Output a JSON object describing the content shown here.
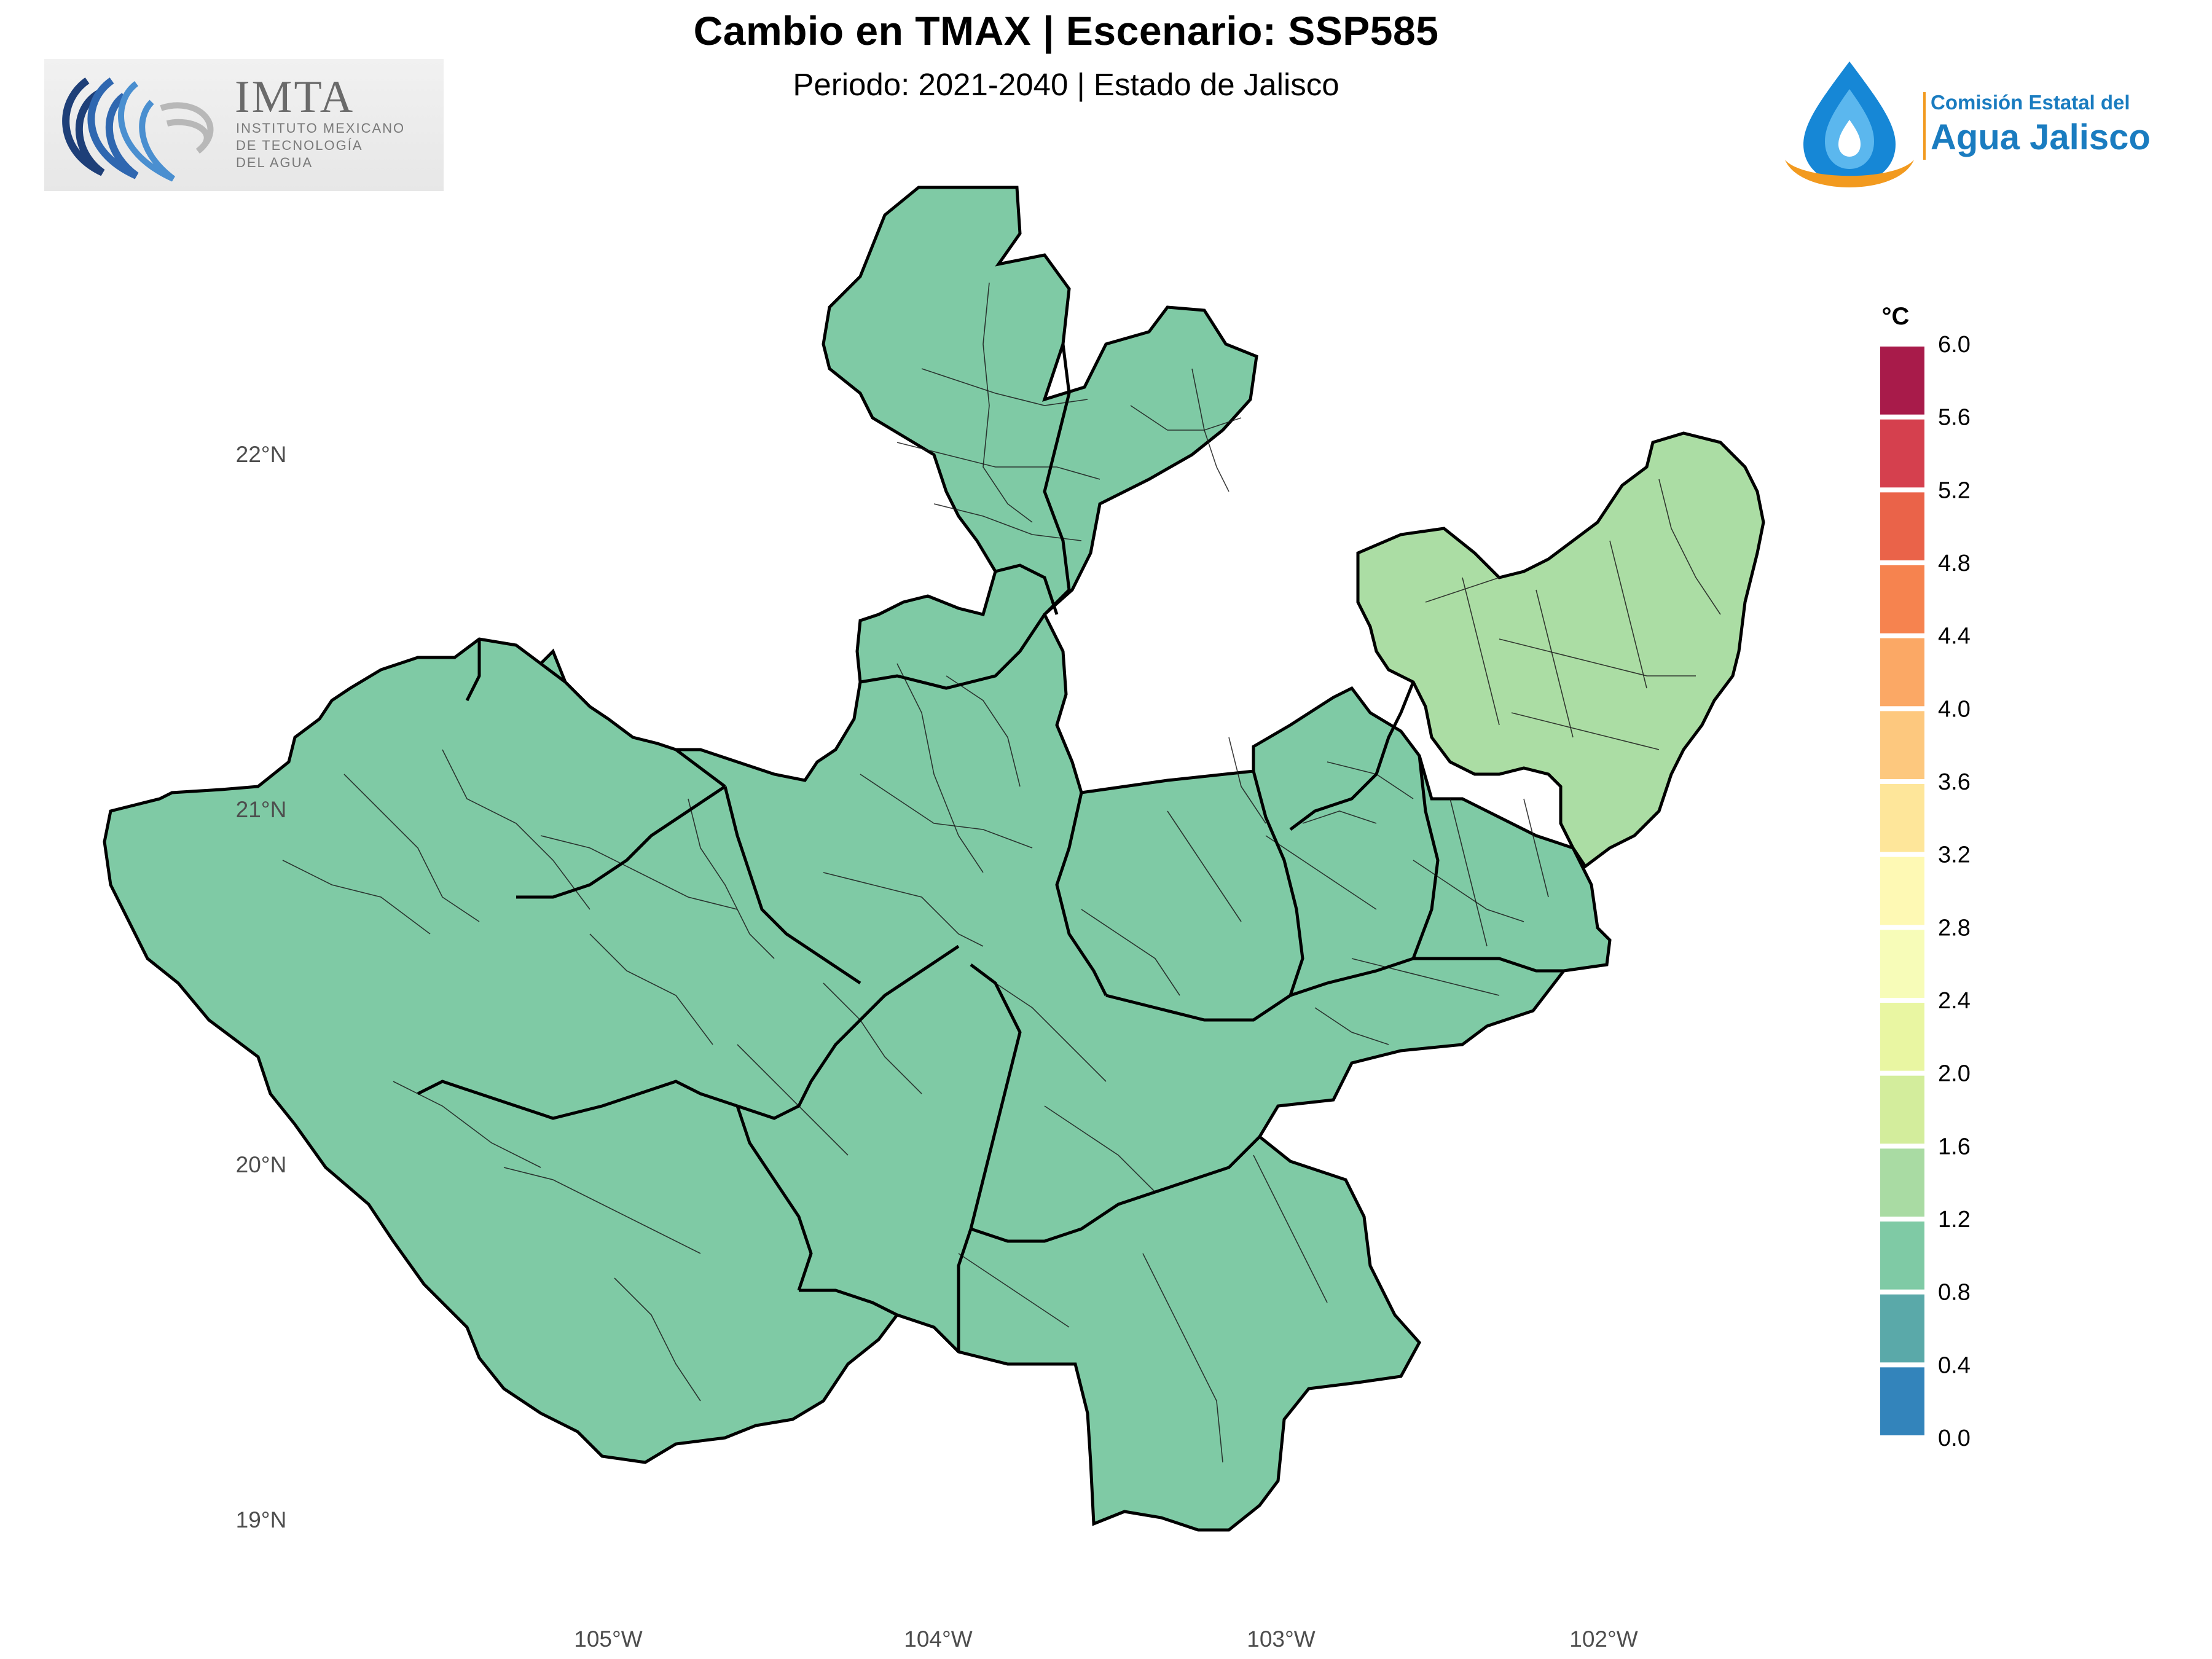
{
  "header": {
    "title": "Cambio en TMAX | Escenario: SSP585",
    "subtitle": "Periodo: 2021-2040 | Estado de Jalisco"
  },
  "logos": {
    "left": {
      "name": "IMTA",
      "lines": [
        "INSTITUTO MEXICANO",
        "DE TECNOLOGÍA",
        "DEL AGUA"
      ]
    },
    "right": {
      "line1": "Comisión Estatal del",
      "line2": "Agua Jalisco"
    }
  },
  "map": {
    "latitude_labels": [
      "22°N",
      "21°N",
      "20°N",
      "19°N"
    ],
    "longitude_labels": [
      "105°W",
      "104°W",
      "103°W",
      "102°W"
    ],
    "region_values": [
      {
        "region": "state-main",
        "value_c": 1.4
      },
      {
        "region": "northeast-los-altos",
        "value_c": 1.8
      }
    ]
  },
  "legend": {
    "title": "°C",
    "ticks": [
      "6.0",
      "5.6",
      "5.2",
      "4.8",
      "4.4",
      "4.0",
      "3.6",
      "3.2",
      "2.8",
      "2.4",
      "2.0",
      "1.6",
      "1.2",
      "0.8",
      "0.4",
      "0.0"
    ],
    "colors": [
      "#a81b4a",
      "#d5404e",
      "#ea6349",
      "#f6834f",
      "#fba865",
      "#fdc87e",
      "#fee69a",
      "#fef9b4",
      "#f7fcb8",
      "#e9f6a2",
      "#d3ed9c",
      "#a9dba3",
      "#7fcaa5",
      "#5aa9a9",
      "#3384bb",
      "#5355a2"
    ]
  },
  "colors": {
    "main_fill": "#7fcaa5",
    "northeast_fill": "#abdda4",
    "border": "#000000"
  }
}
